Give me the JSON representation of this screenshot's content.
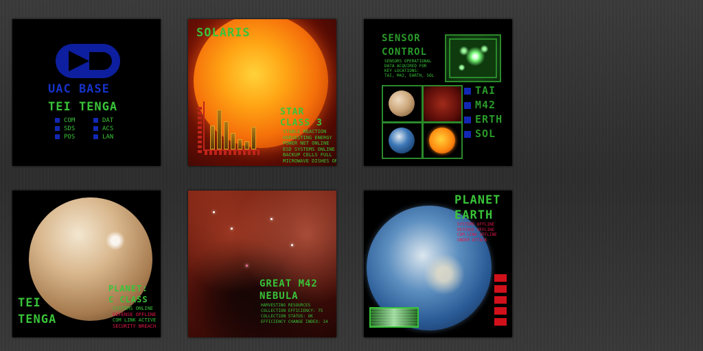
{
  "panels": {
    "uac": {
      "title": "UAC BASE",
      "subtitle": "TEI TENGA",
      "items": [
        "COM",
        "DAT",
        "SDS",
        "ACS",
        "POS",
        "LAN"
      ]
    },
    "solaris": {
      "title": "SOLARIS",
      "heading1": "STAR",
      "heading2": "CLASS 3",
      "lines": [
        "STABLE REACTION",
        "HARVESTING ENERGY",
        "POWER NET ONLINE",
        "ESD SYSTEMS ONLINE",
        "BACKUP CELLS FULL",
        "MICROWAVE DISHES ON"
      ],
      "bar_levels": [
        0.52,
        0.85,
        0.6,
        0.35,
        0.22,
        0.18,
        0.48
      ]
    },
    "sensor": {
      "title1": "SENSOR",
      "title2": "CONTROL",
      "lines": [
        "SENSORS OPERATIONAL",
        "DATA ACQUIRED FOR",
        "KEY LOCATIONS:",
        "TAI, M42, EARTH, SOL"
      ],
      "locations": [
        "TAI",
        "M42",
        "ERTH",
        "SOL"
      ]
    },
    "planet_tai": {
      "name1": "TEI",
      "name2": "TENGA",
      "heading1": "PLANET:",
      "heading2": "C CLASS",
      "status": [
        {
          "text": "SYSTEMS ONLINE",
          "color": "#39c339"
        },
        {
          "text": "DEFENSE OFFLINE",
          "color": "#e0184a"
        },
        {
          "text": "COM LINK ACTIVE",
          "color": "#39c339"
        },
        {
          "text": "SECURITY BREACH",
          "color": "#e0184a"
        }
      ]
    },
    "nebula": {
      "heading1": "GREAT M42",
      "heading2": "NEBULA",
      "lines": [
        "HARVESTING RESOURCES",
        "COLLECTION EFFICIENCY: 75",
        "COLLECTION STATUS: OK",
        "EFFICIENCY CHANGE INDEX: 14"
      ]
    },
    "earth": {
      "heading1": "PLANET",
      "heading2": "EARTH",
      "status": [
        "SYSTEMS OFFLINE",
        "DEFENSE OFFLINE",
        "COM LINK OFFLINE",
        "UNDER ATTACK"
      ]
    }
  },
  "colors": {
    "green": "#39c339",
    "blue": "#1632c8",
    "red": "#e0184a"
  }
}
